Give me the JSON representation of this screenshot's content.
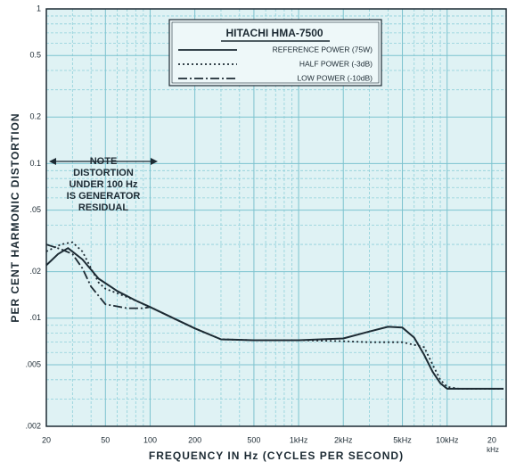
{
  "chart_data": {
    "type": "line",
    "title": "HITACHI HMA-7500",
    "x_label": "FREQUENCY IN Hz (CYCLES PER SECOND)",
    "y_label": "PER CENT HARMONIC DISTORTION",
    "x_unit_label": "kHz",
    "log_x": true,
    "log_y": true,
    "grid": true,
    "xlim": [
      20,
      25000
    ],
    "ylim": [
      0.002,
      1
    ],
    "xticks": [
      20,
      50,
      100,
      200,
      500,
      {
        "value": 1000,
        "label": "1kHz"
      },
      {
        "value": 2000,
        "label": "2kHz"
      },
      {
        "value": 5000,
        "label": "5kHz"
      },
      {
        "value": 10000,
        "label": "10kHz"
      },
      {
        "value": 20000,
        "label": "20"
      }
    ],
    "yticks": [
      {
        "value": 0.002,
        "label": ".002"
      },
      {
        "value": 0.005,
        "label": ".005"
      },
      {
        "value": 0.01,
        "label": ".01"
      },
      {
        "value": 0.02,
        "label": ".02"
      },
      {
        "value": 0.05,
        "label": ".05"
      },
      {
        "value": 0.1,
        "label": "0.1"
      },
      {
        "value": 0.2,
        "label": "0.2"
      },
      {
        "value": 0.5,
        "label": "0.5"
      },
      1
    ],
    "x_minor_grid": [
      30,
      40,
      60,
      70,
      80,
      90,
      300,
      400,
      600,
      700,
      800,
      900,
      3000,
      4000,
      6000,
      7000,
      8000,
      9000
    ],
    "y_minor_grid": [
      0.003,
      0.004,
      0.006,
      0.007,
      0.008,
      0.009,
      0.03,
      0.04,
      0.06,
      0.07,
      0.08,
      0.09,
      0.3,
      0.4,
      0.6,
      0.7,
      0.8,
      0.9
    ],
    "annotation": {
      "lines": [
        "NOTE",
        "DISTORTION",
        "UNDER 100 Hz",
        "IS GENERATOR",
        "RESIDUAL"
      ]
    },
    "series": [
      {
        "name": "REFERENCE POWER (75W)",
        "color": "#1c2a33",
        "dash": "none",
        "x": [
          20,
          24,
          28,
          35,
          45,
          60,
          80,
          100,
          150,
          200,
          300,
          500,
          1000,
          2000,
          3000,
          4000,
          5000,
          6000,
          7000,
          8000,
          9000,
          10000,
          12000,
          20000,
          24000
        ],
        "values": [
          0.022,
          0.026,
          0.0284,
          0.024,
          0.018,
          0.015,
          0.013,
          0.0118,
          0.0098,
          0.0086,
          0.0073,
          0.0072,
          0.0072,
          0.0074,
          0.0082,
          0.0088,
          0.0087,
          0.0075,
          0.0058,
          0.0045,
          0.0038,
          0.0035,
          0.0035,
          0.0035,
          0.0035
        ]
      },
      {
        "name": "HALF POWER (-3dB)",
        "color": "#1c2a33",
        "dash": "2 3",
        "x": [
          20,
          25,
          30,
          35,
          40,
          45,
          50,
          60,
          80,
          100,
          150,
          200,
          300,
          500,
          1000,
          2000,
          3000,
          5000,
          7000,
          8000,
          9000,
          10000,
          12000,
          20000,
          24000
        ],
        "values": [
          0.027,
          0.03,
          0.031,
          0.027,
          0.021,
          0.017,
          0.0155,
          0.0145,
          0.013,
          0.0118,
          0.0098,
          0.0086,
          0.0073,
          0.0072,
          0.0072,
          0.0071,
          0.007,
          0.007,
          0.0065,
          0.005,
          0.004,
          0.0036,
          0.0035,
          0.0035,
          0.0035
        ]
      },
      {
        "name": "LOW POWER (-10dB)",
        "color": "#1c2a33",
        "dash": "10 3 2 3",
        "x": [
          20,
          25,
          30,
          35,
          40,
          50,
          70,
          90,
          100
        ],
        "values": [
          0.03,
          0.028,
          0.026,
          0.021,
          0.016,
          0.0123,
          0.0116,
          0.0116,
          0.0118
        ]
      }
    ]
  }
}
